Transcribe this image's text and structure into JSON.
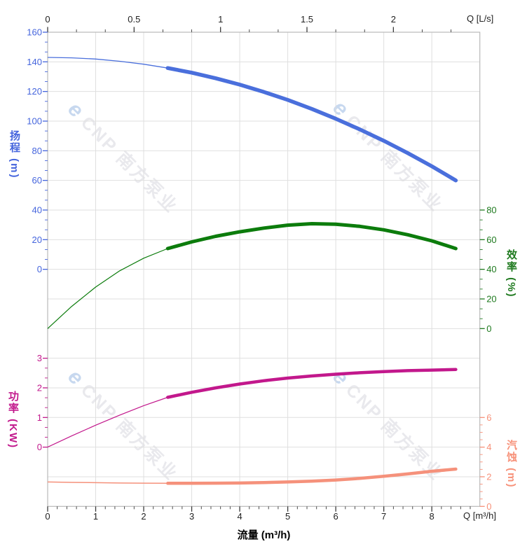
{
  "watermarks": {
    "logo_glyph": "e",
    "text": "CNP 南方泵业",
    "logo_color": "#c7d8ef",
    "text_color": "#e9e9ed"
  },
  "chart_data": {
    "type": "line",
    "title": "",
    "grid": "on",
    "x_axis_bottom": {
      "unit_label": "Q [m³/h]",
      "title": "流量 (m³/h)",
      "range": [
        0,
        9
      ],
      "major_ticks": [
        0,
        1,
        2,
        3,
        4,
        5,
        6,
        7,
        8
      ],
      "tick_labels": [
        "0",
        "1",
        "2",
        "3",
        "4",
        "5",
        "6",
        "7",
        "8"
      ],
      "minors_per_interval": 4,
      "tick_color": "#3a3a3a",
      "label_color": "#222222"
    },
    "x_axis_top": {
      "unit_label": "Q [L/s]",
      "range": [
        0,
        2.5
      ],
      "major_ticks": [
        0,
        0.5,
        1,
        1.5,
        2
      ],
      "tick_labels": [
        "0",
        "0.5",
        "1",
        "1.5",
        "2"
      ],
      "minors_per_interval": 2,
      "tick_color": "#3a3a3a",
      "label_color": "#222222"
    },
    "y_axes": [
      {
        "id": "head",
        "title": "扬程 (m)",
        "side": "left",
        "color": "#4565dd",
        "range": [
          0,
          160
        ],
        "rows": [
          8,
          0
        ],
        "major_ticks": [
          0,
          20,
          40,
          60,
          80,
          100,
          120,
          140,
          160
        ],
        "tick_labels": [
          "0",
          "20",
          "40",
          "60",
          "80",
          "100",
          "120",
          "140",
          "160"
        ],
        "major_step": 20,
        "minors_per_interval": 2
      },
      {
        "id": "efficiency",
        "title": "效率 (%)",
        "side": "right",
        "color": "#1f7a1f",
        "range": [
          0,
          80
        ],
        "rows": [
          10,
          6
        ],
        "major_ticks": [
          0,
          20,
          40,
          60,
          80
        ],
        "tick_labels": [
          "0",
          "20",
          "40",
          "60",
          "80"
        ],
        "major_step": 20,
        "minors_per_interval": 2
      },
      {
        "id": "power",
        "title": "功率 (KW)",
        "side": "left",
        "color": "#c2188c",
        "range": [
          0,
          3
        ],
        "rows": [
          14,
          11
        ],
        "major_ticks": [
          0,
          1,
          2,
          3
        ],
        "tick_labels": [
          "0",
          "1",
          "2",
          "3"
        ],
        "major_step": 1,
        "minors_per_interval": 2
      },
      {
        "id": "npsh",
        "title": "汽蚀 (m)",
        "side": "right",
        "color": "#f79179",
        "range": [
          0,
          6
        ],
        "rows": [
          16,
          13
        ],
        "major_ticks": [
          0,
          2,
          4,
          6
        ],
        "tick_labels": [
          "0",
          "2",
          "4",
          "6"
        ],
        "major_step": 2,
        "minors_per_interval": 3
      }
    ],
    "series_x": [
      0,
      0.5,
      1,
      1.5,
      2,
      2.5,
      3,
      3.5,
      4,
      4.5,
      5,
      5.5,
      6,
      6.5,
      7,
      7.5,
      8,
      8.5
    ],
    "series": [
      {
        "name": "head-curve",
        "axis": "head",
        "color": "#4a6fdc",
        "thin_until": 2.5,
        "thin_width": 1.3,
        "thick_width": 5.5,
        "y": [
          143,
          142.7,
          141.9,
          140.4,
          138.4,
          135.8,
          132.7,
          128.9,
          124.6,
          119.7,
          114.3,
          108.2,
          101.6,
          94.4,
          86.7,
          78.4,
          69.5,
          60
        ]
      },
      {
        "name": "efficiency-curve",
        "axis": "efficiency",
        "color": "#0c7c0c",
        "thin_until": 2.5,
        "thin_width": 1.2,
        "thick_width": 5,
        "y": [
          0,
          15,
          28,
          39,
          47.5,
          54,
          58.5,
          62.3,
          65.3,
          67.8,
          69.8,
          70.8,
          70.4,
          69,
          66.6,
          63.3,
          59.2,
          54
        ]
      },
      {
        "name": "power-curve",
        "axis": "power",
        "color": "#c2188c",
        "thin_until": 2.5,
        "thin_width": 1.2,
        "thick_width": 4.5,
        "y": [
          0,
          0.38,
          0.74,
          1.08,
          1.4,
          1.68,
          1.85,
          2,
          2.13,
          2.24,
          2.33,
          2.4,
          2.46,
          2.51,
          2.55,
          2.58,
          2.6,
          2.62
        ]
      },
      {
        "name": "npsh-curve",
        "axis": "npsh",
        "color": "#f5917b",
        "thin_until": 2.5,
        "thin_width": 1.5,
        "thick_width": 4.5,
        "y": [
          1.65,
          1.62,
          1.6,
          1.58,
          1.57,
          1.56,
          1.56,
          1.57,
          1.58,
          1.61,
          1.65,
          1.7,
          1.78,
          1.89,
          2.03,
          2.19,
          2.37,
          2.52
        ]
      }
    ]
  }
}
